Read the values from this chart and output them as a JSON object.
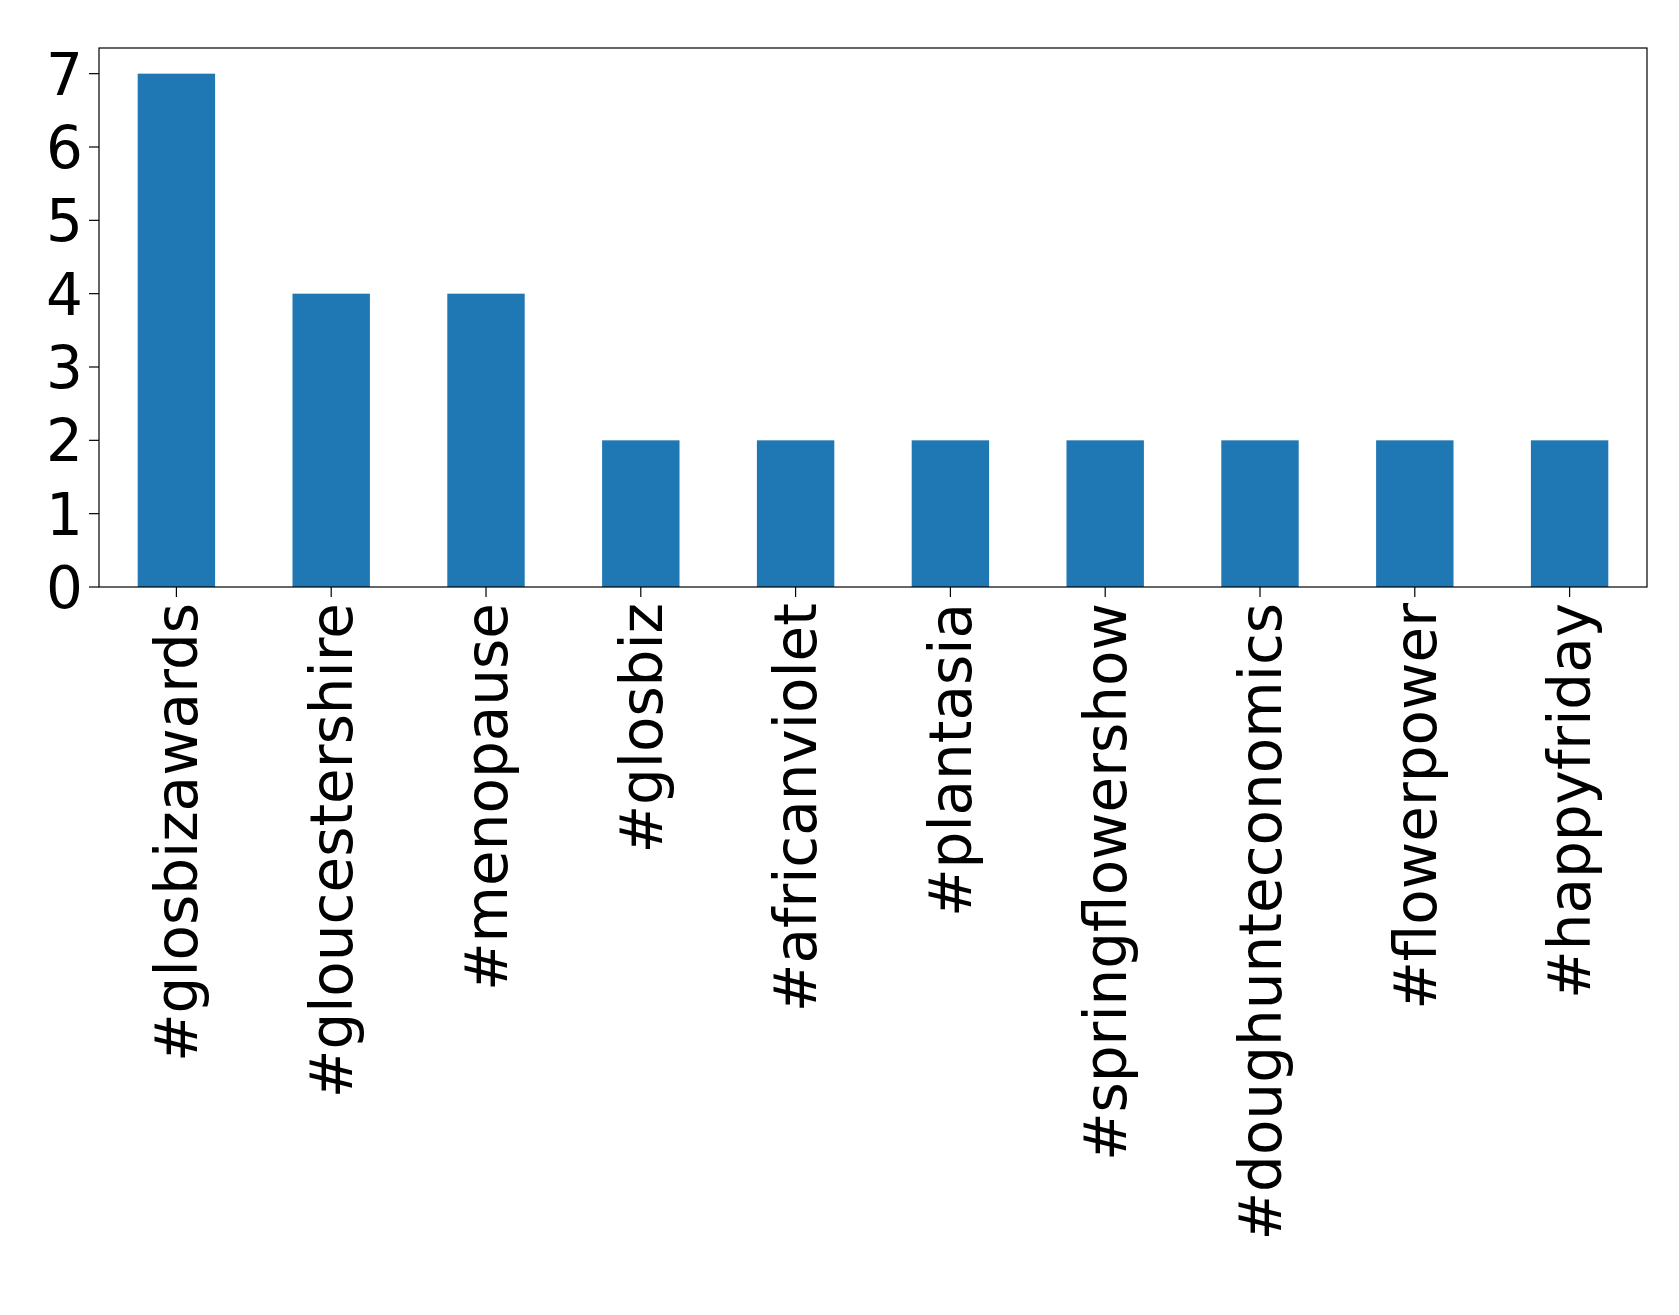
{
  "chart_data": {
    "type": "bar",
    "categories": [
      "#glosbizawards",
      "#gloucestershire",
      "#menopause",
      "#glosbiz",
      "#africanviolet",
      "#plantasia",
      "#springflowershow",
      "#doughunteconomics",
      "#flowerpower",
      "#happyfriday"
    ],
    "values": [
      7,
      4,
      4,
      2,
      2,
      2,
      2,
      2,
      2,
      2
    ],
    "color": "#1f77b4",
    "ylim": [
      0,
      7.35
    ],
    "yticks": [
      0,
      1,
      2,
      3,
      4,
      5,
      6,
      7
    ],
    "grid": false
  }
}
